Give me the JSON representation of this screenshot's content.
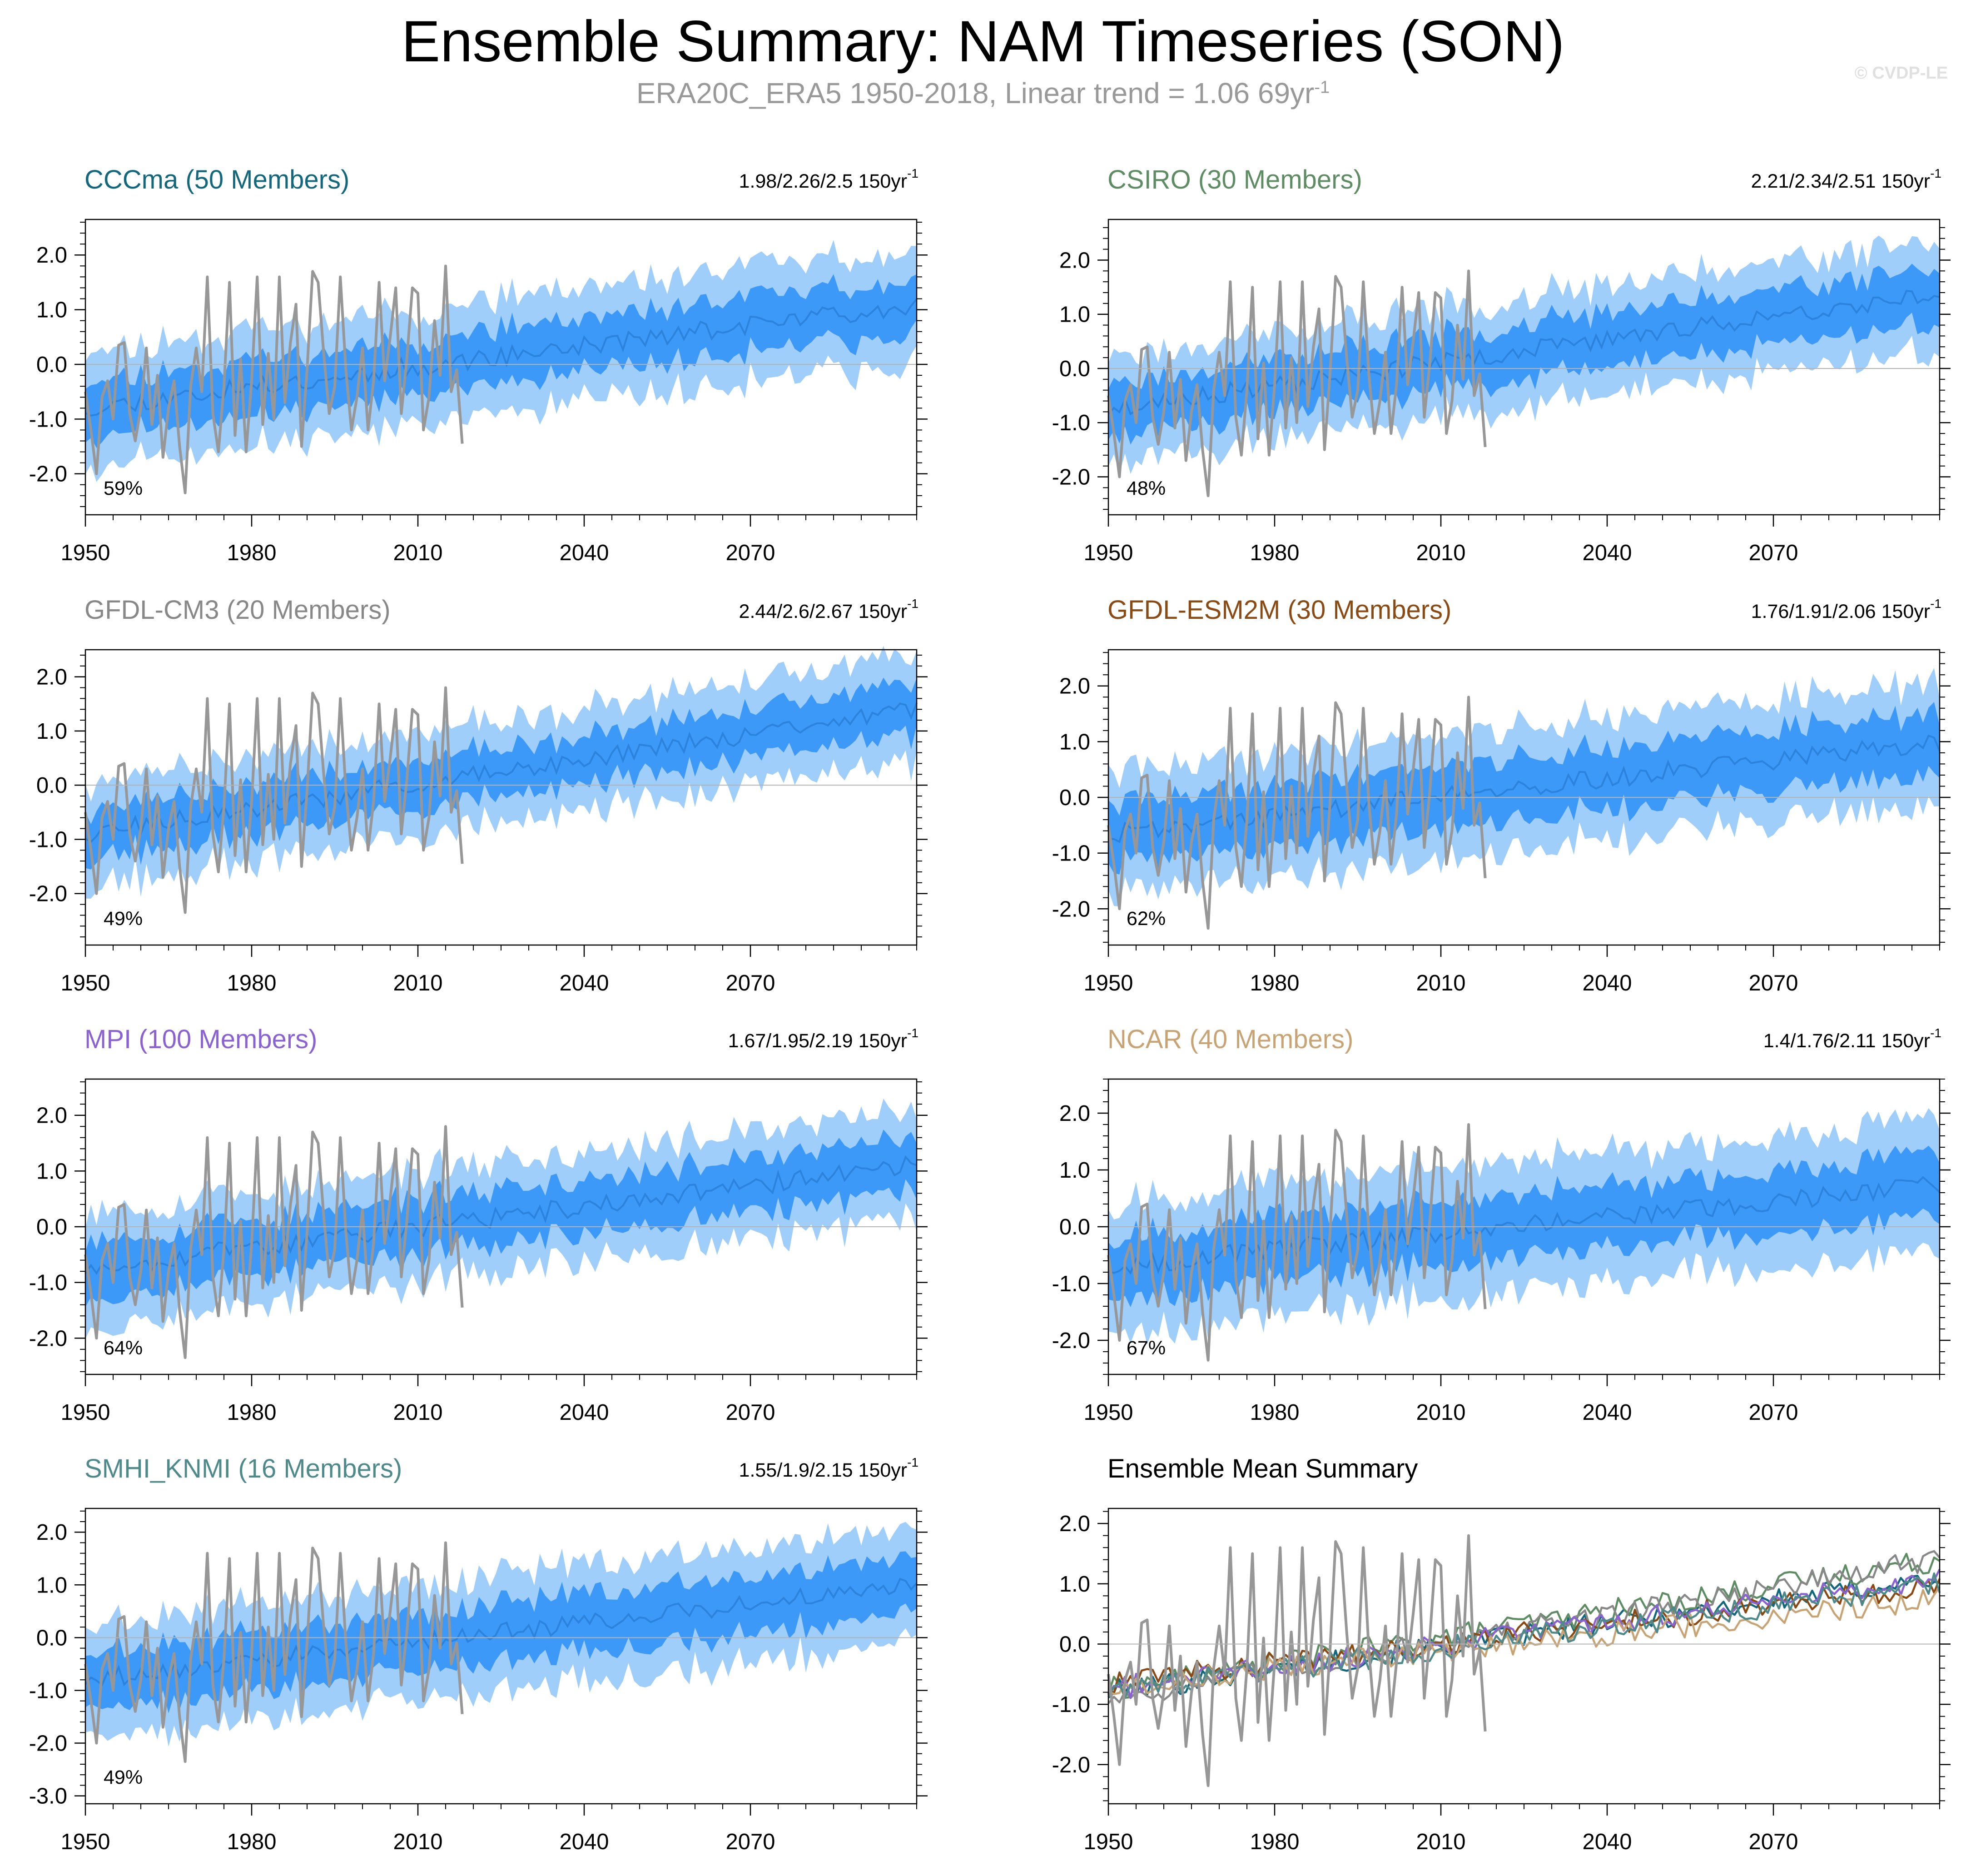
{
  "header": {
    "title": "Ensemble Summary: NAM Timeseries (SON)",
    "subtitle_main": "ERA20C_ERA5 1950-2018, Linear trend = 1.06 69yr",
    "subtitle_exp": "-1",
    "watermark": "© CVDP-LE"
  },
  "colors": {
    "band_outer": "#9fcefb",
    "band_inner": "#3d99f7",
    "ens_mean": "#2b83dd",
    "observed": "#979797",
    "zero_line": "#b3b3b3"
  },
  "chart_data": [
    {
      "type": "area",
      "title": "CCCma (50 Members)",
      "title_color": "#14687d",
      "stats": "1.98/2.26/2.5 150yr",
      "stats_exp": "-1",
      "pct_label": "59%",
      "x_ticks": [
        "1950",
        "1980",
        "2010",
        "2040",
        "2070"
      ],
      "y_ticks": [
        "2.0",
        "1.0",
        "0.0",
        "-1.0",
        "-2.0"
      ],
      "xlim": [
        1950,
        2100
      ],
      "ylim": [
        -2.75,
        2.65
      ],
      "ens_mean_start": -0.8,
      "ens_mean_end": 1.1,
      "inner_halfwidth": 0.5,
      "outer_halfwidth": 1.05,
      "seed": 11
    },
    {
      "type": "area",
      "title": "CSIRO (30 Members)",
      "title_color": "#5e8c63",
      "stats": "2.21/2.34/2.51 150yr",
      "stats_exp": "-1",
      "pct_label": "48%",
      "x_ticks": [
        "1950",
        "1980",
        "2010",
        "2040",
        "2070"
      ],
      "y_ticks": [
        "2.0",
        "1.0",
        "0.0",
        "-1.0",
        "-2.0"
      ],
      "xlim": [
        1950,
        2100
      ],
      "ylim": [
        -2.7,
        2.75
      ],
      "ens_mean_start": -0.75,
      "ens_mean_end": 1.4,
      "inner_halfwidth": 0.5,
      "outer_halfwidth": 1.0,
      "seed": 23
    },
    {
      "type": "area",
      "title": "GFDL-CM3 (20 Members)",
      "title_color": "#888888",
      "stats": "2.44/2.6/2.67 150yr",
      "stats_exp": "-1",
      "pct_label": "49%",
      "x_ticks": [
        "1950",
        "1980",
        "2010",
        "2040",
        "2070"
      ],
      "y_ticks": [
        "2.0",
        "1.0",
        "0.0",
        "-1.0",
        "-2.0"
      ],
      "xlim": [
        1950,
        2100
      ],
      "ylim": [
        -2.95,
        2.5
      ],
      "ens_mean_start": -0.9,
      "ens_mean_end": 1.4,
      "inner_halfwidth": 0.45,
      "outer_halfwidth": 0.95,
      "seed": 37
    },
    {
      "type": "area",
      "title": "GFDL-ESM2M (30 Members)",
      "title_color": "#8a4a14",
      "stats": "1.76/1.91/2.06 150yr",
      "stats_exp": "-1",
      "pct_label": "62%",
      "x_ticks": [
        "1950",
        "1980",
        "2010",
        "2040",
        "2070"
      ],
      "y_ticks": [
        "2.0",
        "1.0",
        "0.0",
        "-1.0",
        "-2.0"
      ],
      "xlim": [
        1950,
        2100
      ],
      "ylim": [
        -2.65,
        2.65
      ],
      "ens_mean_start": -0.65,
      "ens_mean_end": 1.0,
      "inner_halfwidth": 0.55,
      "outer_halfwidth": 1.1,
      "seed": 41
    },
    {
      "type": "area",
      "title": "MPI (100 Members)",
      "title_color": "#8a62d2",
      "stats": "1.67/1.95/2.19 150yr",
      "stats_exp": "-1",
      "pct_label": "64%",
      "x_ticks": [
        "1950",
        "1980",
        "2010",
        "2040",
        "2070"
      ],
      "y_ticks": [
        "2.0",
        "1.0",
        "0.0",
        "-1.0",
        "-2.0"
      ],
      "xlim": [
        1950,
        2100
      ],
      "ylim": [
        -2.65,
        2.65
      ],
      "ens_mean_start": -0.75,
      "ens_mean_end": 1.1,
      "inner_halfwidth": 0.5,
      "outer_halfwidth": 1.0,
      "seed": 53
    },
    {
      "type": "area",
      "title": "NCAR (40 Members)",
      "title_color": "#c8a475",
      "stats": "1.4/1.76/2.11 150yr",
      "stats_exp": "-1",
      "pct_label": "67%",
      "x_ticks": [
        "1950",
        "1980",
        "2010",
        "2040",
        "2070"
      ],
      "y_ticks": [
        "2.0",
        "1.0",
        "0.0",
        "-1.0",
        "-2.0"
      ],
      "xlim": [
        1950,
        2100
      ],
      "ylim": [
        -2.6,
        2.6
      ],
      "ens_mean_start": -0.7,
      "ens_mean_end": 0.75,
      "inner_halfwidth": 0.55,
      "outer_halfwidth": 1.15,
      "seed": 67
    },
    {
      "type": "area",
      "title": "SMHI_KNMI (16 Members)",
      "title_color": "#4f8a8a",
      "stats": "1.55/1.9/2.15 150yr",
      "stats_exp": "-1",
      "pct_label": "49%",
      "x_ticks": [
        "1950",
        "1980",
        "2010",
        "2040",
        "2070"
      ],
      "y_ticks": [
        "2.0",
        "1.0",
        "0.0",
        "-1.0",
        "-2.0",
        "-3.0"
      ],
      "xlim": [
        1950,
        2100
      ],
      "ylim": [
        -3.15,
        2.45
      ],
      "ens_mean_start": -0.8,
      "ens_mean_end": 1.0,
      "inner_halfwidth": 0.55,
      "outer_halfwidth": 1.1,
      "seed": 79
    },
    {
      "type": "line",
      "title": "Ensemble Mean Summary",
      "title_color": "#000000",
      "x_ticks": [
        "1950",
        "1980",
        "2010",
        "2040",
        "2070"
      ],
      "y_ticks": [
        "2.0",
        "1.0",
        "0.0",
        "-1.0",
        "-2.0"
      ],
      "xlim": [
        1950,
        2100
      ],
      "ylim": [
        -2.65,
        2.25
      ],
      "series": [
        {
          "name": "CCCma",
          "color": "#14687d",
          "start": -0.8,
          "end": 1.1
        },
        {
          "name": "CSIRO",
          "color": "#5e8c63",
          "start": -0.75,
          "end": 1.4
        },
        {
          "name": "GFDL-CM3",
          "color": "#888888",
          "start": -0.9,
          "end": 1.4
        },
        {
          "name": "GFDL-ESM2M",
          "color": "#8a4a14",
          "start": -0.65,
          "end": 1.0
        },
        {
          "name": "MPI",
          "color": "#8a62d2",
          "start": -0.75,
          "end": 1.1
        },
        {
          "name": "NCAR",
          "color": "#c8a475",
          "start": -0.7,
          "end": 0.75
        },
        {
          "name": "SMHI_KNMI",
          "color": "#4f8a8a",
          "start": -0.8,
          "end": 1.0
        }
      ]
    }
  ],
  "observed": {
    "name": "ERA20C_ERA5",
    "years": [
      1950,
      2018
    ],
    "values": [
      -0.5,
      -1.2,
      -2.0,
      -0.6,
      -0.3,
      -1.0,
      0.35,
      0.4,
      -0.9,
      -1.4,
      -0.8,
      0.3,
      -1.1,
      -0.2,
      -1.7,
      -0.8,
      -0.3,
      -1.5,
      -2.35,
      -0.4,
      0.3,
      -0.5,
      1.6,
      -0.9,
      -1.6,
      -0.4,
      1.5,
      -1.3,
      0.1,
      -1.6,
      -0.3,
      1.6,
      -1.1,
      0.2,
      -1.0,
      1.6,
      -0.7,
      0.4,
      1.1,
      -1.5,
      -0.1,
      1.7,
      1.5,
      0.2,
      -0.9,
      -0.4,
      1.6,
      -0.1,
      -1.2,
      -0.6,
      0.3,
      -1.2,
      -0.3,
      1.5,
      -0.3,
      0.5,
      1.4,
      -0.9,
      0.1,
      1.4,
      1.3,
      -1.2,
      -0.6,
      0.8,
      -0.2,
      1.8,
      -0.5,
      -0.1,
      -1.45
    ]
  }
}
